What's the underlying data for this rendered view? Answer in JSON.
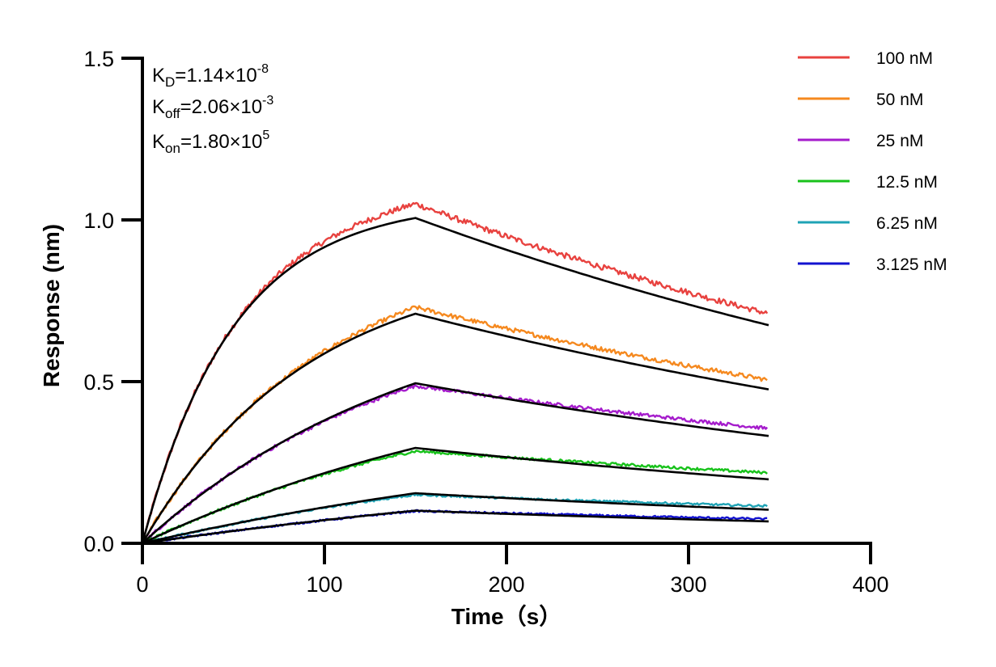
{
  "chart_data": {
    "type": "line",
    "title": "",
    "xlabel": "Time（s）",
    "ylabel": "Response (nm)",
    "xlim": [
      0,
      400
    ],
    "ylim": [
      0,
      1.5
    ],
    "x_ticks": [
      0,
      100,
      200,
      300,
      400
    ],
    "x_tick_labels": [
      "0",
      "100",
      "200",
      "300",
      "400"
    ],
    "y_ticks": [
      0,
      0.5,
      1.0,
      1.5
    ],
    "y_tick_labels": [
      "0.0",
      "0.5",
      "1.0",
      "1.5"
    ],
    "grid": false,
    "legend_position": "top-right",
    "association_end_s": 150,
    "end_time_s": 344,
    "series": [
      {
        "name": "100 nM",
        "color": "#e8423f",
        "concentration_nM": 100,
        "fit_plateau": 1.006,
        "observed_peak": 1.05,
        "observed_end": 0.71
      },
      {
        "name": "50 nM",
        "color": "#f5891f",
        "concentration_nM": 50,
        "fit_plateau": 0.71,
        "observed_peak": 0.73,
        "observed_end": 0.505
      },
      {
        "name": "25 nM",
        "color": "#a51ccc",
        "concentration_nM": 25,
        "fit_plateau": 0.495,
        "observed_peak": 0.487,
        "observed_end": 0.355
      },
      {
        "name": "12.5 nM",
        "color": "#18c21b",
        "concentration_nM": 12.5,
        "fit_plateau": 0.295,
        "observed_peak": 0.285,
        "observed_end": 0.218
      },
      {
        "name": "6.25 nM",
        "color": "#1fa3b5",
        "concentration_nM": 6.25,
        "fit_plateau": 0.155,
        "observed_peak": 0.15,
        "observed_end": 0.115
      },
      {
        "name": "3.125 nM",
        "color": "#1212cf",
        "concentration_nM": 3.125,
        "fit_plateau": 0.101,
        "observed_peak": 0.1,
        "observed_end": 0.075
      }
    ],
    "fit_line_color": "#000000",
    "kinetics": {
      "kd": {
        "symbol": "K",
        "sub": "D",
        "value": "=1.14×10",
        "exp": "-8"
      },
      "koff": {
        "symbol": "K",
        "sub": "off",
        "value": "=2.06×10",
        "exp": "-3"
      },
      "kon": {
        "symbol": "K",
        "sub": "on",
        "value": "=1.80×10",
        "exp": "5"
      }
    }
  }
}
